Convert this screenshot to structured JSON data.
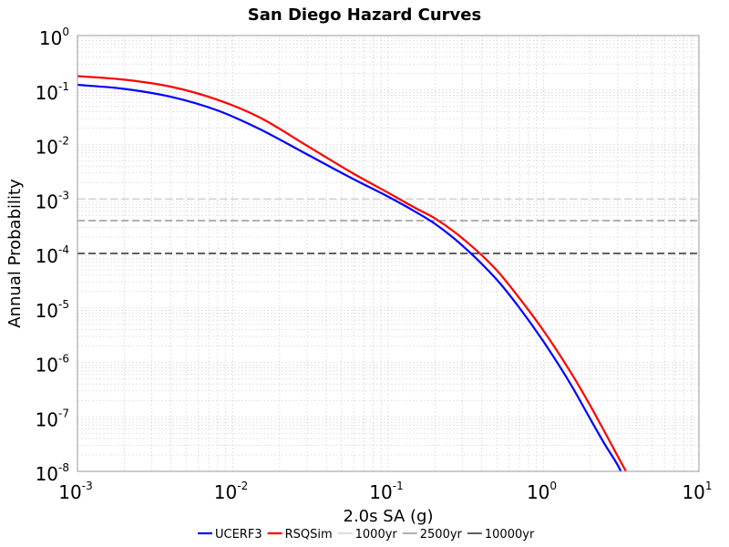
{
  "chart_data": {
    "type": "line",
    "title": "San Diego Hazard Curves",
    "xlabel": "2.0s SA (g)",
    "ylabel": "Annual Probability",
    "xscale": "log",
    "yscale": "log",
    "xlim": [
      0.001,
      10
    ],
    "ylim": [
      1e-08,
      1
    ],
    "grid": true,
    "legend_position": "bottom",
    "x_ticks": [
      {
        "base": "10",
        "exp": "-3"
      },
      {
        "base": "10",
        "exp": "-2"
      },
      {
        "base": "10",
        "exp": "-1"
      },
      {
        "base": "10",
        "exp": "0"
      },
      {
        "base": "10",
        "exp": "1"
      }
    ],
    "y_ticks": [
      {
        "base": "10",
        "exp": "0"
      },
      {
        "base": "10",
        "exp": "-1"
      },
      {
        "base": "10",
        "exp": "-2"
      },
      {
        "base": "10",
        "exp": "-3"
      },
      {
        "base": "10",
        "exp": "-4"
      },
      {
        "base": "10",
        "exp": "-5"
      },
      {
        "base": "10",
        "exp": "-6"
      },
      {
        "base": "10",
        "exp": "-7"
      },
      {
        "base": "10",
        "exp": "-8"
      }
    ],
    "series": [
      {
        "name": "UCERF3",
        "color": "#0000ff",
        "x": [
          0.001,
          0.002,
          0.004,
          0.008,
          0.015,
          0.03,
          0.06,
          0.1,
          0.15,
          0.2,
          0.3,
          0.5,
          0.7,
          1.0,
          1.5,
          2.0,
          2.5,
          3.0,
          3.3
        ],
        "y": [
          0.125,
          0.105,
          0.075,
          0.042,
          0.019,
          0.0066,
          0.0023,
          0.0011,
          0.00058,
          0.00035,
          0.00014,
          3.3e-05,
          1e-05,
          2.4e-06,
          3.9e-07,
          9.1e-08,
          3e-08,
          1.3e-08,
          7.5e-09
        ]
      },
      {
        "name": "RSQSim",
        "color": "#ff0000",
        "x": [
          0.001,
          0.002,
          0.004,
          0.008,
          0.015,
          0.03,
          0.06,
          0.1,
          0.15,
          0.2,
          0.3,
          0.5,
          0.7,
          1.0,
          1.5,
          2.0,
          2.5,
          3.0,
          3.5
        ],
        "y": [
          0.18,
          0.155,
          0.115,
          0.066,
          0.031,
          0.0095,
          0.0029,
          0.0013,
          0.00068,
          0.00044,
          0.00019,
          4.9e-05,
          1.5e-05,
          3.8e-06,
          6.5e-07,
          1.6e-07,
          5e-08,
          1.9e-08,
          8.5e-09
        ]
      }
    ],
    "reference_lines": [
      {
        "name": "1000yr",
        "y": 0.001,
        "color": "#c8c8c8"
      },
      {
        "name": "2500yr",
        "y": 0.0004,
        "color": "#808080"
      },
      {
        "name": "10000yr",
        "y": 0.0001,
        "color": "#000000"
      }
    ]
  }
}
